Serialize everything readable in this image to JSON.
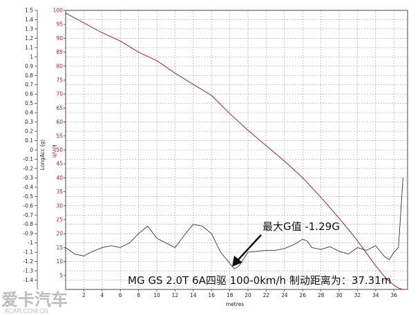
{
  "chart_data": {
    "type": "line",
    "xlabel": "metres",
    "xlim": [
      0,
      37.5
    ],
    "xticks": [
      2,
      4,
      6,
      8,
      10,
      12,
      14,
      16,
      18,
      20,
      22,
      24,
      26,
      28,
      30,
      32,
      34,
      36
    ],
    "grid": true,
    "left_axis": {
      "label": "LongAcc (g)",
      "ylim": [
        -1.5,
        1.5
      ],
      "ticks": [
        "1.5",
        "1.4",
        "1.3",
        "1.2",
        "1.1",
        "1",
        "0.9",
        "0.8",
        "0.7",
        "0.6",
        "0.5",
        "0.4",
        "0.3",
        "0.2",
        "0.1",
        "0",
        "-0.1",
        "-0.2",
        "-0.3",
        "-0.4",
        "-0.5",
        "-0.6",
        "-0.7",
        "-0.8",
        "-0.9",
        "-1",
        "-1.1",
        "-1.2",
        "-1.3",
        "-1.4"
      ],
      "color": "#222222"
    },
    "right_axis": {
      "label": "km/h",
      "ylim": [
        0,
        100
      ],
      "ticks": [
        "100",
        "95",
        "90",
        "85",
        "80",
        "75",
        "70",
        "65",
        "60",
        "55",
        "50",
        "45",
        "40",
        "35",
        "30",
        "25",
        "20",
        "15",
        "10",
        "5"
      ],
      "color": "#b02020"
    },
    "series": [
      {
        "axis": "right",
        "color": "#b03030",
        "x": [
          0,
          2,
          4,
          6,
          8,
          10,
          12,
          14,
          16,
          18,
          20,
          22,
          24,
          26,
          28,
          30,
          32,
          34,
          35,
          36,
          36.5,
          37
        ],
        "y": [
          99,
          95.5,
          92,
          89,
          85,
          82,
          77.5,
          73.5,
          69.5,
          63,
          57,
          51.5,
          46,
          40,
          33,
          25.5,
          17.5,
          8.5,
          4.5,
          1.5,
          0.5,
          0
        ]
      },
      {
        "axis": "left",
        "color": "#333333",
        "x": [
          0,
          1,
          2,
          3,
          4,
          5,
          6,
          7,
          8,
          9,
          10,
          11,
          12,
          13,
          14,
          15,
          16,
          17,
          18,
          18.5,
          19,
          20,
          21,
          22,
          23,
          24,
          25,
          26,
          26.5,
          27,
          28,
          29,
          30,
          31,
          32,
          33,
          34,
          35,
          35.5,
          36,
          36.5,
          37
        ],
        "y": [
          -1.05,
          -1.12,
          -1.14,
          -1.09,
          -1.05,
          -1.03,
          -1.05,
          -1.0,
          -0.9,
          -0.82,
          -0.95,
          -1.0,
          -1.05,
          -0.92,
          -0.8,
          -0.82,
          -0.9,
          -1.1,
          -1.22,
          -1.28,
          -1.25,
          -1.1,
          -1.09,
          -1.08,
          -1.08,
          -1.06,
          -1.02,
          -0.96,
          -0.98,
          -1.05,
          -1.07,
          -1.04,
          -1.09,
          -1.12,
          -1.05,
          -1.08,
          -1.03,
          -1.15,
          -1.18,
          -1.1,
          -1.05,
          -0.3
        ]
      }
    ],
    "annotations": [
      {
        "text": "最大G值 -1.29G",
        "x": 18.6,
        "y": -1.28
      },
      {
        "text": "MG GS 2.0T 6A四驱 100-0km/h 制动距离为：37.31m"
      }
    ]
  },
  "watermark": {
    "line1": "爱卡汽车",
    "line2": "XCAR.COM.CN"
  }
}
